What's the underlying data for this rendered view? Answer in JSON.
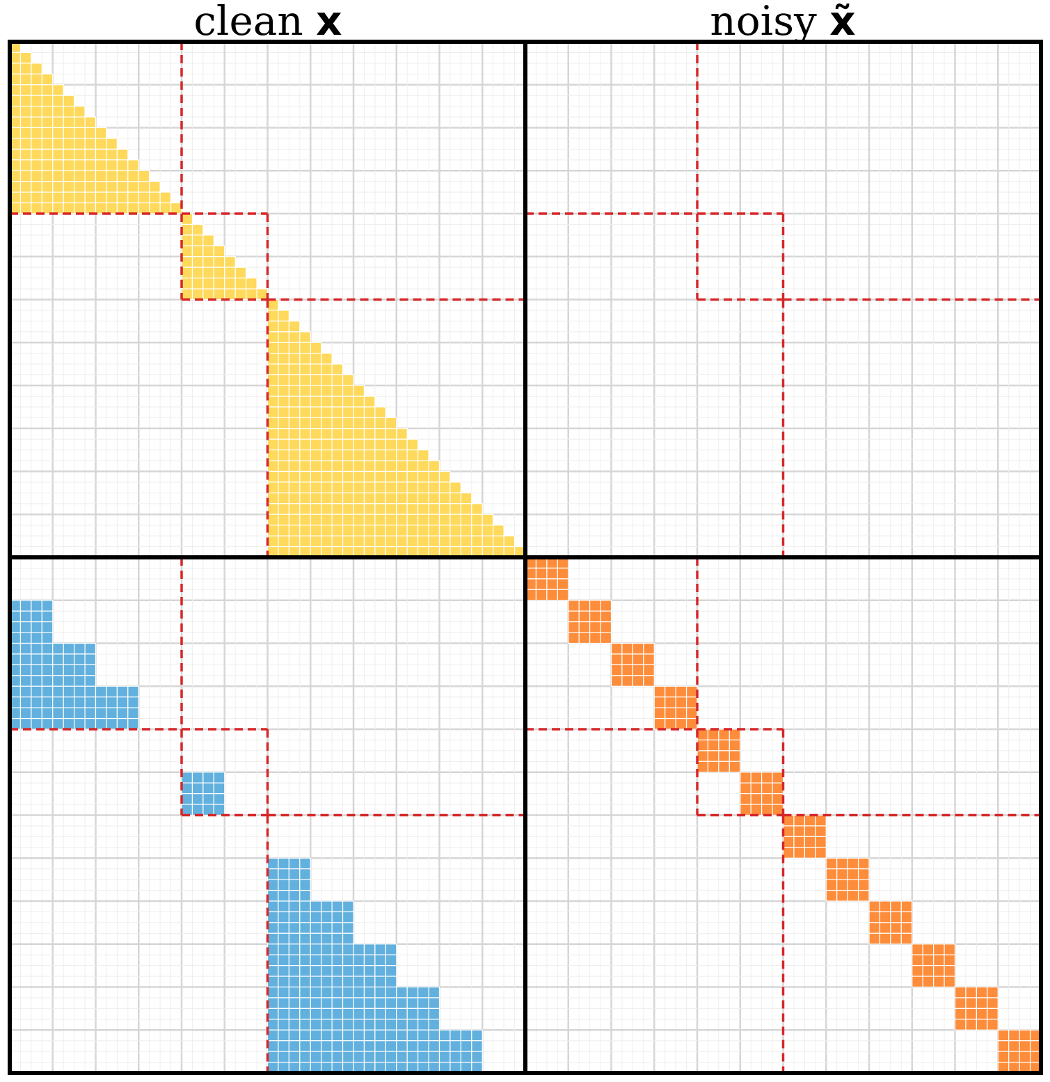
{
  "titles": [
    {
      "text": "clean",
      "symbol": "x"
    },
    {
      "text": "noisy",
      "symbol": "x̃"
    }
  ]
}
